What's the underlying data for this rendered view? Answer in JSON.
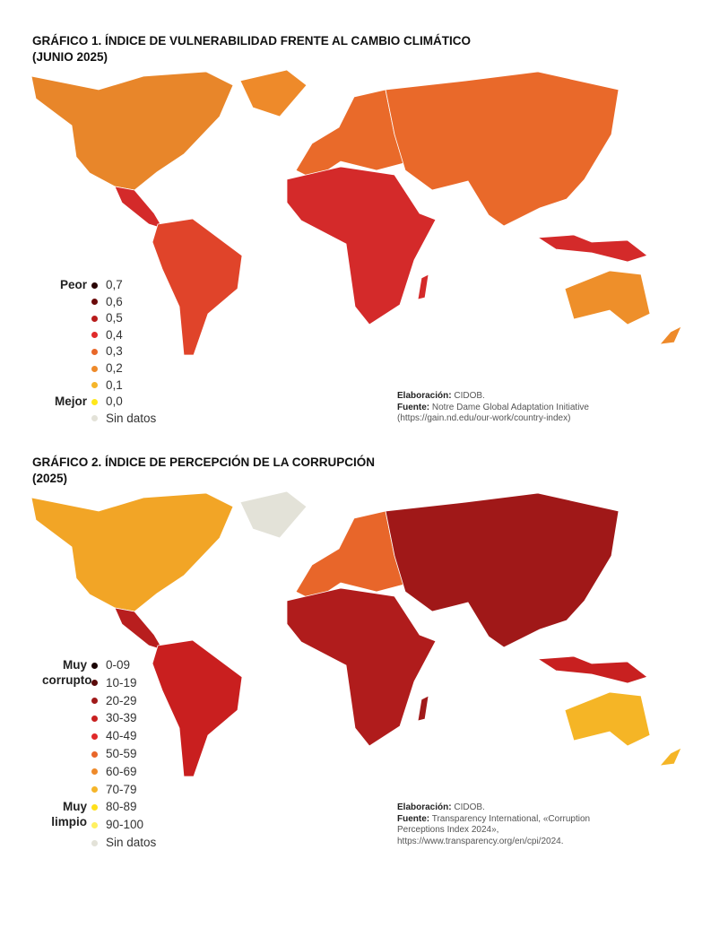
{
  "maps": [
    {
      "title": "GRÁFICO 1. ÍNDICE DE VULNERABILIDAD FRENTE AL CAMBIO CLIMÁTICO",
      "subtitle": "(JUNIO 2025)",
      "legend_top": "Peor",
      "legend_bottom": "Mejor",
      "legend": [
        {
          "label": "0,7",
          "color": "#2a0505"
        },
        {
          "label": "0,6",
          "color": "#6b0a0a"
        },
        {
          "label": "0,5",
          "color": "#b81c1c"
        },
        {
          "label": "0,4",
          "color": "#e02a2a"
        },
        {
          "label": "0,3",
          "color": "#e8682a"
        },
        {
          "label": "0,2",
          "color": "#ee8a2a"
        },
        {
          "label": "0,1",
          "color": "#f5b52a"
        },
        {
          "label": "0,0",
          "color": "#ffe81a"
        },
        {
          "label": "Sin datos",
          "color": "#e3e2d8"
        }
      ],
      "credit_label": "Elaboración:",
      "credit": "CIDOB.",
      "source_label": "Fuente:",
      "source": "Notre Dame Global Adaptation Initiative (https://gain.nd.edu/our-work/country-index)"
    },
    {
      "title": "GRÁFICO 2. ÍNDICE DE PERCEPCIÓN DE LA CORRUPCIÓN",
      "subtitle": "(2025)",
      "legend_top": "Muy corrupto",
      "legend_bottom": "Muy limpio",
      "legend": [
        {
          "label": "0-09",
          "color": "#1a0505"
        },
        {
          "label": "10-19",
          "color": "#5a0a0a"
        },
        {
          "label": "20-29",
          "color": "#a01a1a"
        },
        {
          "label": "30-39",
          "color": "#c82020"
        },
        {
          "label": "40-49",
          "color": "#e02a2a"
        },
        {
          "label": "50-59",
          "color": "#e8662a"
        },
        {
          "label": "60-69",
          "color": "#ee8a2a"
        },
        {
          "label": "70-79",
          "color": "#f5b52a"
        },
        {
          "label": "80-89",
          "color": "#ffe01a"
        },
        {
          "label": "90-100",
          "color": "#fff060"
        },
        {
          "label": "Sin datos",
          "color": "#e3e2d8"
        }
      ],
      "credit_label": "Elaboración:",
      "credit": "CIDOB.",
      "source_label": "Fuente:",
      "source": "Transparency International, «Corruption Perceptions Index 2024», https://www.transparency.org/en/cpi/2024."
    }
  ]
}
